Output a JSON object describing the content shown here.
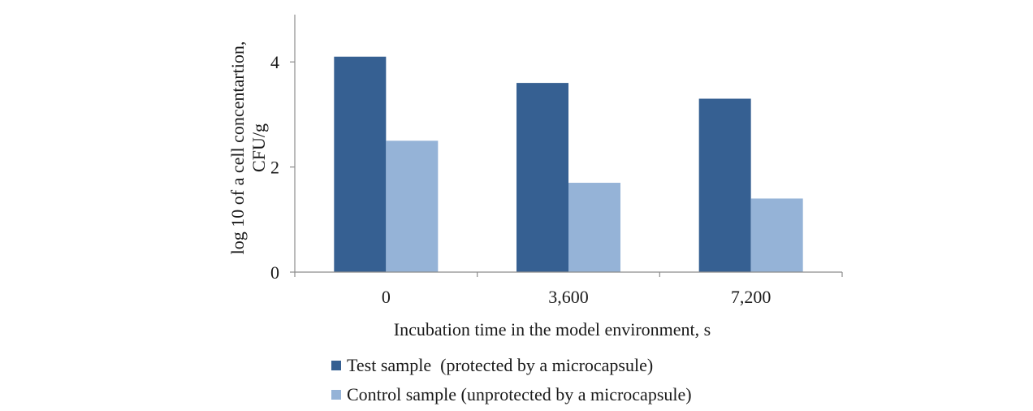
{
  "chart_data": {
    "type": "bar",
    "categories": [
      "0",
      "3,600",
      "7,200"
    ],
    "series": [
      {
        "name": "Test sample  (protected by a microcapsule)",
        "color": "#366092",
        "values": [
          4.1,
          3.6,
          3.3
        ]
      },
      {
        "name": "Control sample (unprotected by a microcapsule)",
        "color": "#95b3d7",
        "values": [
          2.5,
          1.7,
          1.4
        ]
      }
    ],
    "ylim": [
      0,
      4.9
    ],
    "yticks": [
      0,
      2,
      4
    ],
    "xlabel": "Incubation time in the model environment, s",
    "ylabel_lines": [
      "log 10 of a cell concentartion,",
      "CFU/g"
    ],
    "legend_position": "bottom"
  }
}
